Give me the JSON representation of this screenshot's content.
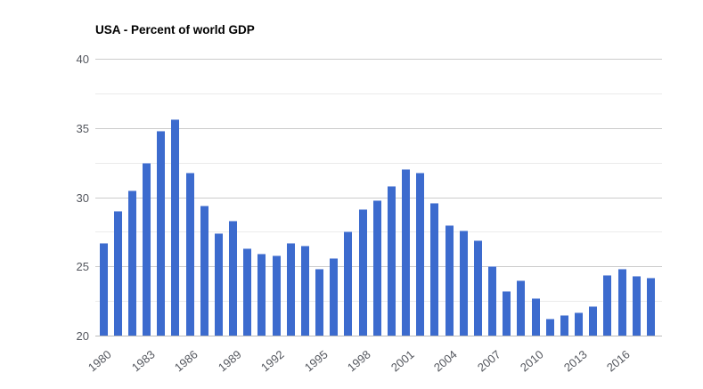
{
  "chart_data": {
    "type": "bar",
    "title": "USA - Percent of world GDP",
    "series_name": "Percent of world GDP",
    "x": [
      1980,
      1981,
      1982,
      1983,
      1984,
      1985,
      1986,
      1987,
      1988,
      1989,
      1990,
      1991,
      1992,
      1993,
      1994,
      1995,
      1996,
      1997,
      1998,
      1999,
      2000,
      2001,
      2002,
      2003,
      2004,
      2005,
      2006,
      2007,
      2008,
      2009,
      2010,
      2011,
      2012,
      2013,
      2014,
      2015,
      2016,
      2017,
      2018
    ],
    "values": [
      26.7,
      29.0,
      30.5,
      32.5,
      34.8,
      35.6,
      31.8,
      29.4,
      27.4,
      28.3,
      26.3,
      25.9,
      25.8,
      26.7,
      26.5,
      24.8,
      25.6,
      27.5,
      29.1,
      29.8,
      30.8,
      32.0,
      31.8,
      29.6,
      28.0,
      27.6,
      26.9,
      25.0,
      23.2,
      24.0,
      22.7,
      21.2,
      21.5,
      21.7,
      22.1,
      24.4,
      24.8,
      24.3,
      24.2
    ],
    "xlabel": "",
    "ylabel": "",
    "ylim": [
      20,
      40
    ],
    "yticks_major": [
      20,
      25,
      30,
      35,
      40
    ],
    "yticks_minor": [
      22.5,
      27.5,
      32.5,
      37.5
    ],
    "xtick_labels": [
      "1980",
      "1983",
      "1986",
      "1989",
      "1992",
      "1995",
      "1998",
      "2001",
      "2004",
      "2007",
      "2010",
      "2013",
      "2016"
    ],
    "xtick_step": 3,
    "grid": "horizontal-only",
    "legend": "none",
    "bar_color": "#3c6bce",
    "axis_label_color": "#54575e",
    "major_grid_color": "#cccccc",
    "minor_grid_color": "#ebebeb",
    "title_color": "#000000",
    "background_color": "#ffffff"
  }
}
